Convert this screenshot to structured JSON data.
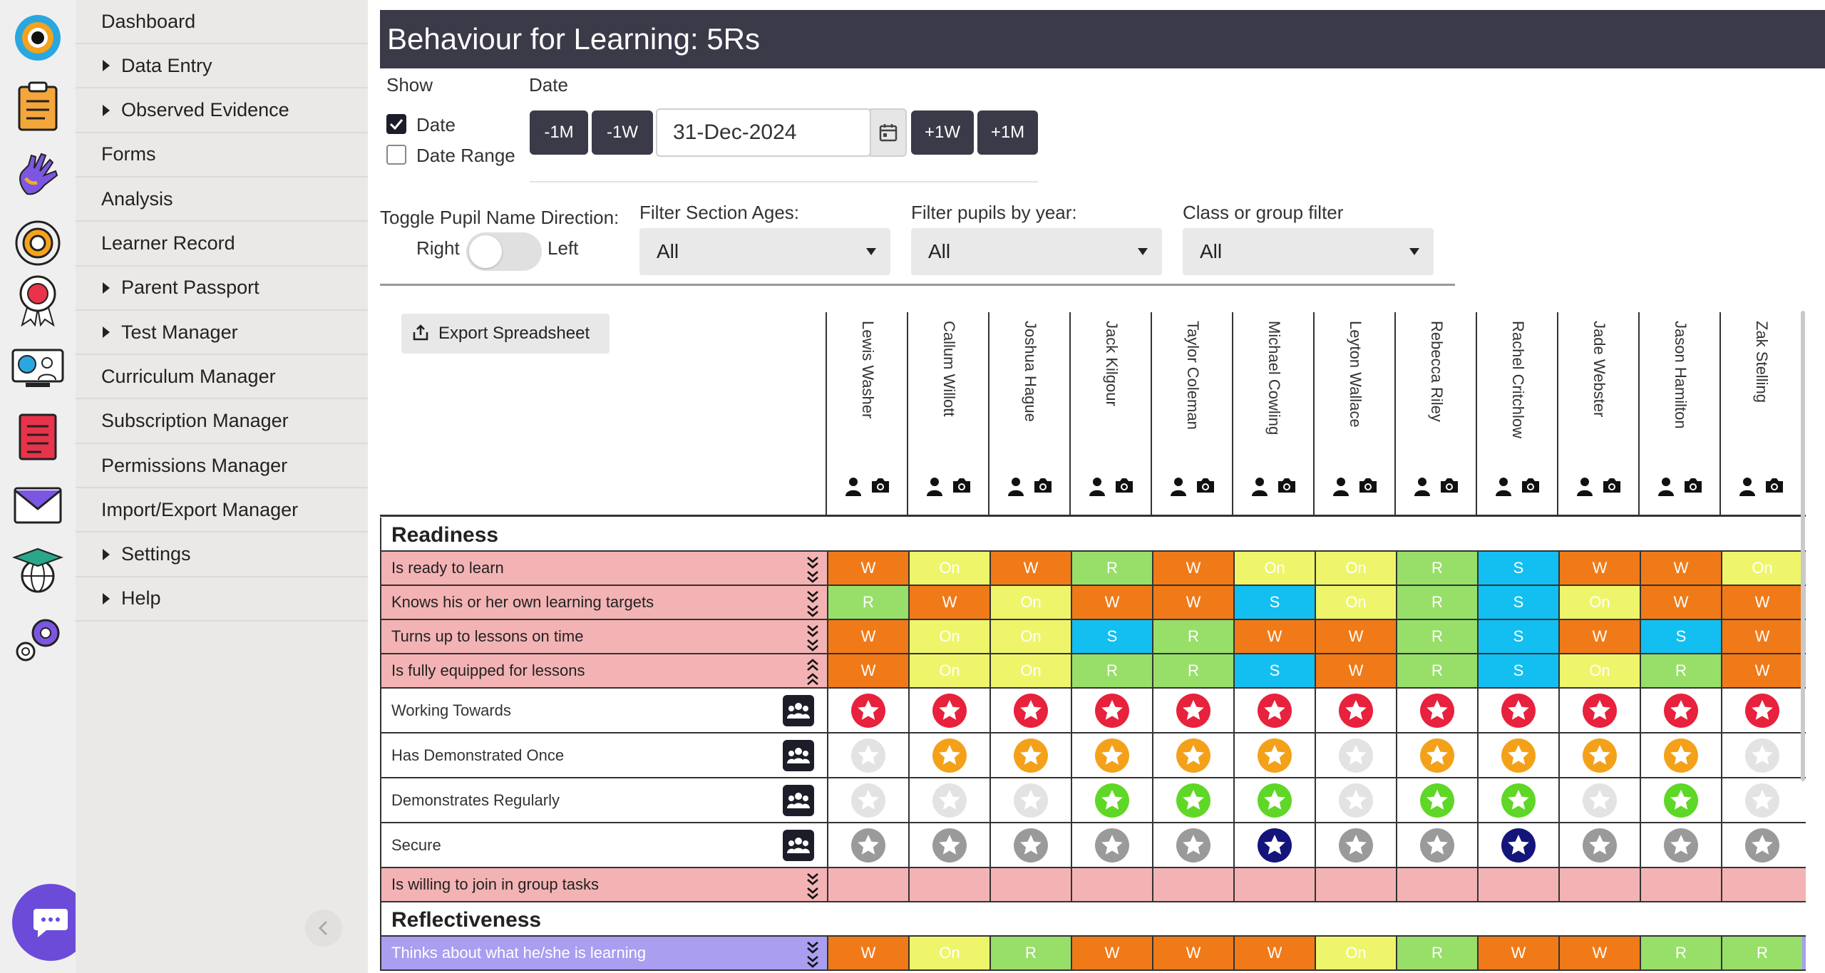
{
  "colors": {
    "W": "#f07a18",
    "On": "#eef56a",
    "R": "#98df6a",
    "S": "#12bff0",
    "pink_row": "#f3b3b4",
    "purple_row": "#a99ef0",
    "star_red": "#e8213c",
    "star_orange": "#f4a11a",
    "star_green": "#5fd726",
    "star_navy": "#14157a",
    "star_grey": "#9a9a9a",
    "star_faint": "#e3e3e3"
  },
  "sidebar": {
    "items": [
      {
        "label": "Dashboard",
        "expand": false
      },
      {
        "label": "Data Entry",
        "expand": true
      },
      {
        "label": "Observed Evidence",
        "expand": true
      },
      {
        "label": "Forms",
        "expand": false
      },
      {
        "label": "Analysis",
        "expand": false
      },
      {
        "label": "Learner Record",
        "expand": false
      },
      {
        "label": "Parent Passport",
        "expand": true
      },
      {
        "label": "Test Manager",
        "expand": true
      },
      {
        "label": "Curriculum Manager",
        "expand": false
      },
      {
        "label": "Subscription Manager",
        "expand": false
      },
      {
        "label": "Permissions Manager",
        "expand": false
      },
      {
        "label": "Import/Export Manager",
        "expand": false
      },
      {
        "label": "Settings",
        "expand": true
      },
      {
        "label": "Help",
        "expand": true
      }
    ]
  },
  "rail_icons": [
    "app-logo-icon",
    "clipboard-icon",
    "hand-icon",
    "target-search-icon",
    "award-ribbon-icon",
    "teacher-screen-icon",
    "document-icon",
    "envelope-icon",
    "globe-graduation-icon",
    "gears-icon"
  ],
  "header": {
    "title": "Behaviour for Learning: 5Rs"
  },
  "filters": {
    "show_label": "Show",
    "date_label": "Date",
    "show_date": "Date",
    "show_date_range": "Date Range",
    "btn_minus_month": "-1M",
    "btn_minus_week": "-1W",
    "date_value": "31-Dec-2024",
    "btn_plus_week": "+1W",
    "btn_plus_month": "+1M",
    "toggle_label": "Toggle Pupil Name Direction:",
    "toggle_right": "Right",
    "toggle_left": "Left",
    "section_ages_label": "Filter Section Ages:",
    "section_ages_value": "All",
    "year_label": "Filter pupils by year:",
    "year_value": "All",
    "class_label": "Class or group filter",
    "class_value": "All"
  },
  "grid": {
    "export_label": "Export Spreadsheet",
    "pupils": [
      "Lewis Washer",
      "Callum Willott",
      "Joshua Hague",
      "Jack Kilgour",
      "Taylor Coleman",
      "Michael Cowling",
      "Leyton Wallace",
      "Rebecca Riley",
      "Rachel Critchlow",
      "Jade Webster",
      "Jason Hamilton",
      "Zak Stelling"
    ],
    "sections": [
      {
        "title": "Readiness",
        "rows": [
          {
            "label": "Is ready to learn",
            "values": [
              "W",
              "On",
              "W",
              "R",
              "W",
              "On",
              "On",
              "R",
              "S",
              "W",
              "W",
              "On"
            ]
          },
          {
            "label": "Knows his or her own learning targets",
            "values": [
              "R",
              "W",
              "On",
              "W",
              "W",
              "S",
              "On",
              "R",
              "S",
              "On",
              "W",
              "W"
            ]
          },
          {
            "label": "Turns up to lessons on time",
            "values": [
              "W",
              "On",
              "On",
              "S",
              "R",
              "W",
              "W",
              "R",
              "S",
              "W",
              "S",
              "W"
            ]
          },
          {
            "label": "Is fully equipped for lessons",
            "values": [
              "W",
              "On",
              "On",
              "R",
              "R",
              "S",
              "W",
              "R",
              "S",
              "On",
              "R",
              "W"
            ]
          }
        ],
        "levels": [
          {
            "label": "Working Towards",
            "stars": [
              "red",
              "red",
              "red",
              "red",
              "red",
              "red",
              "red",
              "red",
              "red",
              "red",
              "red",
              "red"
            ]
          },
          {
            "label": "Has Demonstrated Once",
            "stars": [
              "faint",
              "orange",
              "orange",
              "orange",
              "orange",
              "orange",
              "faint",
              "orange",
              "orange",
              "orange",
              "orange",
              "faint"
            ]
          },
          {
            "label": "Demonstrates Regularly",
            "stars": [
              "faint",
              "faint",
              "faint",
              "green",
              "green",
              "green",
              "faint",
              "green",
              "green",
              "faint",
              "green",
              "faint"
            ]
          },
          {
            "label": "Secure",
            "stars": [
              "grey",
              "grey",
              "grey",
              "grey",
              "grey",
              "navy",
              "grey",
              "grey",
              "navy",
              "grey",
              "grey",
              "grey"
            ]
          }
        ],
        "extra_row": {
          "label": "Is willing to join in group tasks"
        }
      },
      {
        "title": "Reflectiveness",
        "rows": [
          {
            "label": "Thinks about what he/she is learning",
            "values": [
              "W",
              "On",
              "R",
              "W",
              "W",
              "W",
              "On",
              "R",
              "W",
              "W",
              "R",
              "R"
            ]
          }
        ]
      }
    ]
  }
}
